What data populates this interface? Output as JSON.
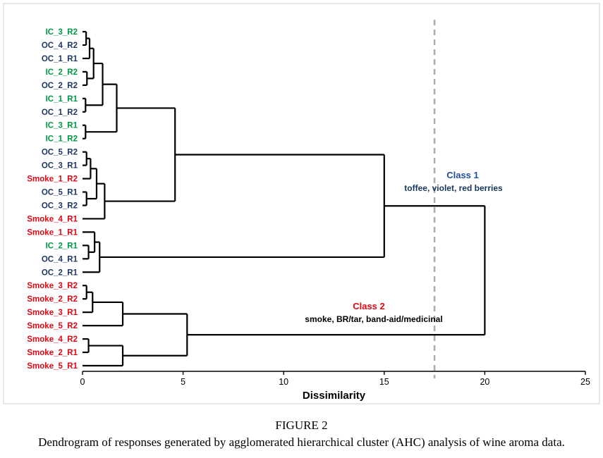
{
  "figure": {
    "caption_label": "FIGURE 2",
    "caption_text": "Dendrogram of responses generated by agglomerated hierarchical cluster (AHC) analysis of wine aroma data."
  },
  "chart_data": {
    "type": "dendrogram",
    "orientation": "horizontal",
    "xlabel": "Dissimilarity",
    "xlim": [
      0,
      25
    ],
    "x_ticks": [
      0,
      5,
      10,
      15,
      20,
      25
    ],
    "cut_line_x": 17.5,
    "line_color": "#000000",
    "cut_line_color": "#ADADAD",
    "axis_color": "#000000",
    "group_colors": {
      "IC": "#009A44",
      "OC": "#1F3864",
      "Smoke": "#E00713"
    },
    "leaves": [
      {
        "label": "IC_3_R2",
        "group": "IC"
      },
      {
        "label": "OC_4_R2",
        "group": "OC"
      },
      {
        "label": "OC_1_R1",
        "group": "OC"
      },
      {
        "label": "IC_2_R2",
        "group": "IC"
      },
      {
        "label": "OC_2_R2",
        "group": "OC"
      },
      {
        "label": "IC_1_R1",
        "group": "IC"
      },
      {
        "label": "OC_1_R2",
        "group": "OC"
      },
      {
        "label": "IC_3_R1",
        "group": "IC"
      },
      {
        "label": "IC_1_R2",
        "group": "IC"
      },
      {
        "label": "OC_5_R2",
        "group": "OC"
      },
      {
        "label": "OC_3_R1",
        "group": "OC"
      },
      {
        "label": "Smoke_1_R2",
        "group": "Smoke"
      },
      {
        "label": "OC_5_R1",
        "group": "OC"
      },
      {
        "label": "OC_3_R2",
        "group": "OC"
      },
      {
        "label": "Smoke_4_R1",
        "group": "Smoke"
      },
      {
        "label": "Smoke_1_R1",
        "group": "Smoke"
      },
      {
        "label": "IC_2_R1",
        "group": "IC"
      },
      {
        "label": "OC_4_R1",
        "group": "OC"
      },
      {
        "label": "OC_2_R1",
        "group": "OC"
      },
      {
        "label": "Smoke_3_R2",
        "group": "Smoke"
      },
      {
        "label": "Smoke_2_R2",
        "group": "Smoke"
      },
      {
        "label": "Smoke_3_R1",
        "group": "Smoke"
      },
      {
        "label": "Smoke_5_R2",
        "group": "Smoke"
      },
      {
        "label": "Smoke_4_R2",
        "group": "Smoke"
      },
      {
        "label": "Smoke_2_R1",
        "group": "Smoke"
      },
      {
        "label": "Smoke_5_R1",
        "group": "Smoke"
      }
    ],
    "tree": {
      "h": 20,
      "c": [
        {
          "h": 15,
          "c": [
            {
              "h": 4.6,
              "c": [
                {
                  "h": 1.7,
                  "c": [
                    {
                      "h": 1.0,
                      "c": [
                        {
                          "h": 0.55,
                          "c": [
                            {
                              "h": 0.35,
                              "c": [
                                {
                                  "h": 0.18,
                                  "c": [
                                    "IC_3_R2",
                                    "OC_4_R2"
                                  ]
                                },
                                "OC_1_R1"
                              ]
                            },
                            {
                              "h": 0.22,
                              "c": [
                                "IC_2_R2",
                                "OC_2_R2"
                              ]
                            }
                          ]
                        },
                        {
                          "h": 0.15,
                          "c": [
                            "IC_1_R1",
                            "OC_1_R2"
                          ]
                        }
                      ]
                    },
                    {
                      "h": 0.15,
                      "c": [
                        "IC_3_R1",
                        "IC_1_R2"
                      ]
                    }
                  ]
                },
                {
                  "h": 1.1,
                  "c": [
                    {
                      "h": 0.7,
                      "c": [
                        {
                          "h": 0.4,
                          "c": [
                            {
                              "h": 0.2,
                              "c": [
                                "OC_5_R2",
                                "OC_3_R1"
                              ]
                            },
                            "Smoke_1_R2"
                          ]
                        },
                        {
                          "h": 0.2,
                          "c": [
                            "OC_5_R1",
                            "OC_3_R2"
                          ]
                        }
                      ]
                    },
                    "Smoke_4_R1"
                  ]
                }
              ]
            },
            {
              "h": 0.85,
              "c": [
                {
                  "h": 0.6,
                  "c": [
                    "Smoke_1_R1",
                    {
                      "h": 0.3,
                      "c": [
                        "IC_2_R1",
                        "OC_4_R1"
                      ]
                    }
                  ]
                },
                "OC_2_R1"
              ]
            }
          ]
        },
        {
          "h": 5.2,
          "c": [
            {
              "h": 2.0,
              "c": [
                {
                  "h": 0.5,
                  "c": [
                    {
                      "h": 0.2,
                      "c": [
                        "Smoke_3_R2",
                        "Smoke_2_R2"
                      ]
                    },
                    "Smoke_3_R1"
                  ]
                },
                "Smoke_5_R2"
              ]
            },
            {
              "h": 2.0,
              "c": [
                {
                  "h": 0.3,
                  "c": [
                    "Smoke_4_R2",
                    "Smoke_2_R1"
                  ]
                },
                "Smoke_5_R1"
              ]
            }
          ]
        }
      ]
    },
    "annotations": [
      {
        "name": "class-1",
        "title": "Class 1",
        "title_color": "#1F4E9C",
        "subtitle": "toffee, violet, red berries",
        "subtitle_color": "#16365C",
        "x": 656,
        "y": 253,
        "sub_x": 643,
        "sub_y": 271
      },
      {
        "name": "class-2",
        "title": "Class 2",
        "title_color": "#E00713",
        "subtitle": "smoke, BR/tar, band-aid/medicinal",
        "subtitle_color": "#000000",
        "x": 523,
        "y": 439,
        "sub_x": 530,
        "sub_y": 457
      }
    ]
  }
}
